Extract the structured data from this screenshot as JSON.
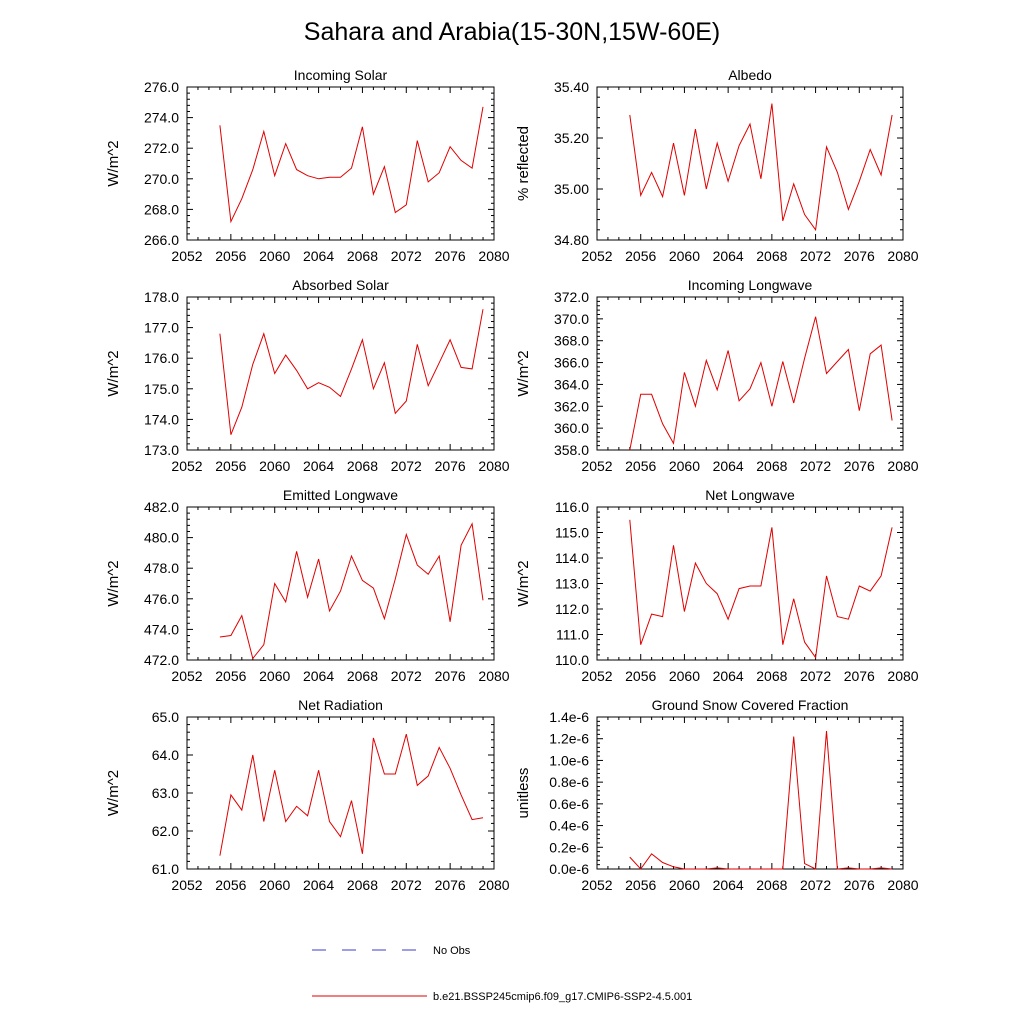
{
  "figure": {
    "title": "Sahara and Arabia(15-30N,15W-60E)"
  },
  "legend": [
    {
      "label": "No Obs",
      "color": "#3c3ccc",
      "dashed": true
    },
    {
      "label": "b.e21.BSSP245cmip6.f09_g17.CMIP6-SSP2-4.5.001",
      "color": "#e00000",
      "dashed": false
    }
  ],
  "chart_data": [
    {
      "type": "line",
      "title": "Incoming Solar",
      "ylabel": "W/m^2",
      "xlim": [
        2052,
        2080
      ],
      "ylim": [
        266,
        276
      ],
      "xticks": [
        2052,
        2056,
        2060,
        2064,
        2068,
        2072,
        2076,
        2080
      ],
      "xtick_labels": [
        "2052",
        "2056",
        "2060",
        "2064",
        "2068",
        "2072",
        "2076",
        "2080"
      ],
      "yticks": [
        266,
        268,
        270,
        272,
        274,
        276
      ],
      "ytick_labels": [
        "266.0",
        "268.0",
        "270.0",
        "272.0",
        "274.0",
        "276.0"
      ],
      "color": "#e00000",
      "x": [
        2055,
        2056,
        2057,
        2058,
        2059,
        2060,
        2061,
        2062,
        2063,
        2064,
        2065,
        2066,
        2067,
        2068,
        2069,
        2070,
        2071,
        2072,
        2073,
        2074,
        2075,
        2076,
        2077,
        2078,
        2079
      ],
      "y": [
        273.5,
        267.2,
        268.7,
        270.6,
        273.1,
        270.2,
        272.3,
        270.6,
        270.2,
        270.0,
        270.1,
        270.1,
        270.7,
        273.4,
        269.0,
        270.8,
        267.8,
        268.3,
        272.5,
        269.8,
        270.4,
        272.1,
        271.2,
        270.7,
        274.7
      ]
    },
    {
      "type": "line",
      "title": "Albedo",
      "ylabel": "% reflected",
      "xlim": [
        2052,
        2080
      ],
      "ylim": [
        34.8,
        35.4
      ],
      "xticks": [
        2052,
        2056,
        2060,
        2064,
        2068,
        2072,
        2076,
        2080
      ],
      "xtick_labels": [
        "2052",
        "2056",
        "2060",
        "2064",
        "2068",
        "2072",
        "2076",
        "2080"
      ],
      "yticks": [
        34.8,
        35.0,
        35.2,
        35.4
      ],
      "ytick_labels": [
        "34.80",
        "35.00",
        "35.20",
        "35.40"
      ],
      "color": "#e00000",
      "x": [
        2055,
        2056,
        2057,
        2058,
        2059,
        2060,
        2061,
        2062,
        2063,
        2064,
        2065,
        2066,
        2067,
        2068,
        2069,
        2070,
        2071,
        2072,
        2073,
        2074,
        2075,
        2076,
        2077,
        2078,
        2079
      ],
      "y": [
        35.29,
        34.975,
        35.065,
        34.97,
        35.18,
        34.975,
        35.235,
        35.0,
        35.18,
        35.03,
        35.17,
        35.255,
        35.04,
        35.335,
        34.875,
        35.02,
        34.9,
        34.84,
        35.165,
        35.065,
        34.92,
        35.03,
        35.155,
        35.055,
        35.29
      ]
    },
    {
      "type": "line",
      "title": "Absorbed Solar",
      "ylabel": "W/m^2",
      "xlim": [
        2052,
        2080
      ],
      "ylim": [
        173,
        178
      ],
      "xticks": [
        2052,
        2056,
        2060,
        2064,
        2068,
        2072,
        2076,
        2080
      ],
      "xtick_labels": [
        "2052",
        "2056",
        "2060",
        "2064",
        "2068",
        "2072",
        "2076",
        "2080"
      ],
      "yticks": [
        173,
        174,
        175,
        176,
        177,
        178
      ],
      "ytick_labels": [
        "173.0",
        "174.0",
        "175.0",
        "176.0",
        "177.0",
        "178.0"
      ],
      "color": "#e00000",
      "x": [
        2055,
        2056,
        2057,
        2058,
        2059,
        2060,
        2061,
        2062,
        2063,
        2064,
        2065,
        2066,
        2067,
        2068,
        2069,
        2070,
        2071,
        2072,
        2073,
        2074,
        2075,
        2076,
        2077,
        2078,
        2079
      ],
      "y": [
        176.8,
        173.5,
        174.4,
        175.8,
        176.8,
        175.5,
        176.1,
        175.6,
        175.0,
        175.2,
        175.05,
        174.75,
        175.65,
        176.6,
        175.0,
        175.85,
        174.2,
        174.6,
        176.45,
        175.1,
        175.85,
        176.6,
        175.7,
        175.65,
        177.6
      ]
    },
    {
      "type": "line",
      "title": "Incoming Longwave",
      "ylabel": "W/m^2",
      "xlim": [
        2052,
        2080
      ],
      "ylim": [
        358,
        372
      ],
      "xticks": [
        2052,
        2056,
        2060,
        2064,
        2068,
        2072,
        2076,
        2080
      ],
      "xtick_labels": [
        "2052",
        "2056",
        "2060",
        "2064",
        "2068",
        "2072",
        "2076",
        "2080"
      ],
      "yticks": [
        358,
        360,
        362,
        364,
        366,
        368,
        370,
        372
      ],
      "ytick_labels": [
        "358.0",
        "360.0",
        "362.0",
        "364.0",
        "366.0",
        "368.0",
        "370.0",
        "372.0"
      ],
      "color": "#e00000",
      "x": [
        2055,
        2056,
        2057,
        2058,
        2059,
        2060,
        2061,
        2062,
        2063,
        2064,
        2065,
        2066,
        2067,
        2068,
        2069,
        2070,
        2071,
        2072,
        2073,
        2074,
        2075,
        2076,
        2077,
        2078,
        2079
      ],
      "y": [
        358.0,
        363.1,
        363.1,
        360.4,
        358.6,
        365.1,
        362.0,
        366.2,
        363.5,
        367.1,
        362.5,
        363.6,
        366.0,
        362.0,
        366.1,
        362.3,
        366.4,
        370.2,
        365.0,
        366.1,
        367.2,
        361.6,
        366.8,
        367.6,
        360.7
      ]
    },
    {
      "type": "line",
      "title": "Emitted Longwave",
      "ylabel": "W/m^2",
      "xlim": [
        2052,
        2080
      ],
      "ylim": [
        472,
        482
      ],
      "xticks": [
        2052,
        2056,
        2060,
        2064,
        2068,
        2072,
        2076,
        2080
      ],
      "xtick_labels": [
        "2052",
        "2056",
        "2060",
        "2064",
        "2068",
        "2072",
        "2076",
        "2080"
      ],
      "yticks": [
        472,
        474,
        476,
        478,
        480,
        482
      ],
      "ytick_labels": [
        "472.0",
        "474.0",
        "476.0",
        "478.0",
        "480.0",
        "482.0"
      ],
      "color": "#e00000",
      "x": [
        2055,
        2056,
        2057,
        2058,
        2059,
        2060,
        2061,
        2062,
        2063,
        2064,
        2065,
        2066,
        2067,
        2068,
        2069,
        2070,
        2071,
        2072,
        2073,
        2074,
        2075,
        2076,
        2077,
        2078,
        2079
      ],
      "y": [
        473.5,
        473.6,
        474.9,
        472.1,
        473.0,
        477.0,
        475.8,
        479.1,
        476.1,
        478.6,
        475.2,
        476.5,
        478.8,
        477.2,
        476.7,
        474.7,
        477.3,
        480.2,
        478.2,
        477.6,
        478.8,
        474.5,
        479.5,
        480.9,
        475.9
      ]
    },
    {
      "type": "line",
      "title": "Net Longwave",
      "ylabel": "W/m^2",
      "xlim": [
        2052,
        2080
      ],
      "ylim": [
        110,
        116
      ],
      "xticks": [
        2052,
        2056,
        2060,
        2064,
        2068,
        2072,
        2076,
        2080
      ],
      "xtick_labels": [
        "2052",
        "2056",
        "2060",
        "2064",
        "2068",
        "2072",
        "2076",
        "2080"
      ],
      "yticks": [
        110,
        111,
        112,
        113,
        114,
        115,
        116
      ],
      "ytick_labels": [
        "110.0",
        "111.0",
        "112.0",
        "113.0",
        "114.0",
        "115.0",
        "116.0"
      ],
      "color": "#e00000",
      "x": [
        2055,
        2056,
        2057,
        2058,
        2059,
        2060,
        2061,
        2062,
        2063,
        2064,
        2065,
        2066,
        2067,
        2068,
        2069,
        2070,
        2071,
        2072,
        2073,
        2074,
        2075,
        2076,
        2077,
        2078,
        2079
      ],
      "y": [
        115.5,
        110.6,
        111.8,
        111.7,
        114.5,
        111.9,
        113.8,
        113.0,
        112.6,
        111.6,
        112.8,
        112.9,
        112.9,
        115.2,
        110.6,
        112.4,
        110.7,
        110.1,
        113.3,
        111.7,
        111.6,
        112.9,
        112.7,
        113.3,
        115.2
      ]
    },
    {
      "type": "line",
      "title": "Net Radiation",
      "ylabel": "W/m^2",
      "xlim": [
        2052,
        2080
      ],
      "ylim": [
        61,
        65
      ],
      "xticks": [
        2052,
        2056,
        2060,
        2064,
        2068,
        2072,
        2076,
        2080
      ],
      "xtick_labels": [
        "2052",
        "2056",
        "2060",
        "2064",
        "2068",
        "2072",
        "2076",
        "2080"
      ],
      "yticks": [
        61,
        62,
        63,
        64,
        65
      ],
      "ytick_labels": [
        "61.0",
        "62.0",
        "63.0",
        "64.0",
        "65.0"
      ],
      "color": "#e00000",
      "x": [
        2055,
        2056,
        2057,
        2058,
        2059,
        2060,
        2061,
        2062,
        2063,
        2064,
        2065,
        2066,
        2067,
        2068,
        2069,
        2070,
        2071,
        2072,
        2073,
        2074,
        2075,
        2076,
        2077,
        2078,
        2079
      ],
      "y": [
        61.35,
        62.95,
        62.55,
        64.0,
        62.25,
        63.6,
        62.25,
        62.65,
        62.4,
        63.6,
        62.25,
        61.85,
        62.8,
        61.4,
        64.45,
        63.5,
        63.5,
        64.55,
        63.2,
        63.45,
        64.2,
        63.65,
        62.95,
        62.3,
        62.35
      ]
    },
    {
      "type": "line",
      "title": "Ground Snow Covered Fraction",
      "ylabel": "unitless",
      "xlim": [
        2052,
        2080
      ],
      "ylim": [
        0,
        1.4e-06
      ],
      "xticks": [
        2052,
        2056,
        2060,
        2064,
        2068,
        2072,
        2076,
        2080
      ],
      "xtick_labels": [
        "2052",
        "2056",
        "2060",
        "2064",
        "2068",
        "2072",
        "2076",
        "2080"
      ],
      "yticks": [
        0,
        2e-07,
        4e-07,
        6e-07,
        8e-07,
        1e-06,
        1.2e-06,
        1.4e-06
      ],
      "ytick_labels": [
        "0.0e-6",
        "0.2e-6",
        "0.4e-6",
        "0.6e-6",
        "0.8e-6",
        "1.0e-6",
        "1.2e-6",
        "1.4e-6"
      ],
      "color": "#e00000",
      "x": [
        2055,
        2056,
        2057,
        2058,
        2059,
        2060,
        2061,
        2062,
        2063,
        2064,
        2065,
        2066,
        2067,
        2068,
        2069,
        2070,
        2071,
        2072,
        2073,
        2074,
        2075,
        2076,
        2077,
        2078,
        2079
      ],
      "y": [
        1.1e-07,
        0,
        1.4e-07,
        6e-08,
        2e-08,
        0,
        0,
        0,
        1e-08,
        0,
        0,
        0,
        0,
        0,
        0,
        1.22e-06,
        5e-08,
        0,
        1.27e-06,
        0,
        1e-08,
        0,
        0,
        1e-08,
        0
      ]
    }
  ]
}
